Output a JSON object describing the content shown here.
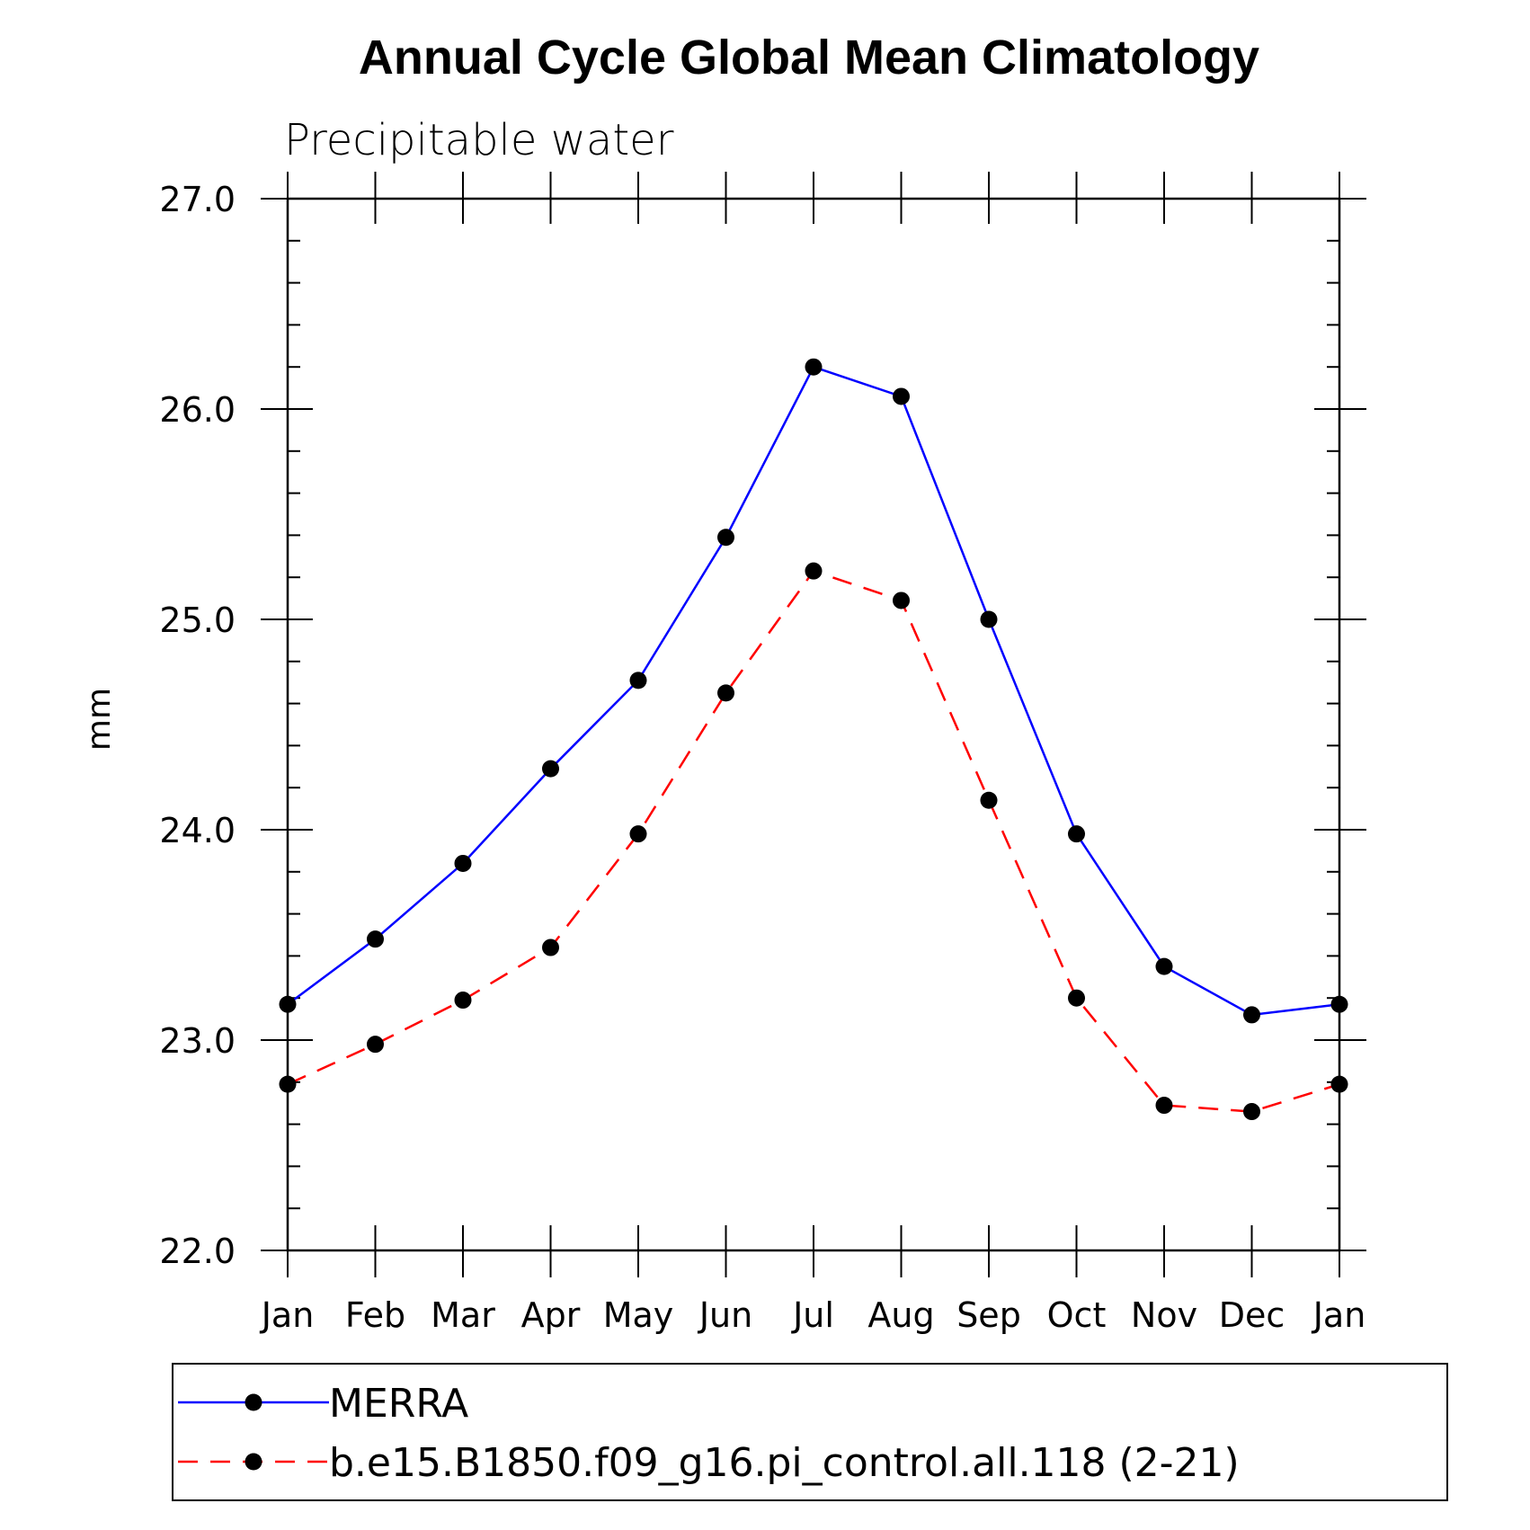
{
  "chart_data": {
    "type": "line",
    "title": "Annual Cycle Global Mean Climatology",
    "subtitle": "Precipitable water",
    "xlabel": "",
    "ylabel": "mm",
    "categories": [
      "Jan",
      "Feb",
      "Mar",
      "Apr",
      "May",
      "Jun",
      "Jul",
      "Aug",
      "Sep",
      "Oct",
      "Nov",
      "Dec",
      "Jan"
    ],
    "ylim": [
      22.0,
      27.0
    ],
    "yticks": [
      "22.0",
      "23.0",
      "24.0",
      "25.0",
      "26.0",
      "27.0"
    ],
    "grid": false,
    "legend_position": "bottom",
    "series": [
      {
        "name": "MERRA",
        "color": "#0000ff",
        "line_style": "solid",
        "marker": "filled-circle",
        "values": [
          23.17,
          23.48,
          23.84,
          24.29,
          24.71,
          25.39,
          26.2,
          26.06,
          25.0,
          23.98,
          23.35,
          23.12,
          23.17
        ]
      },
      {
        "name": "b.e15.B1850.f09_g16.pi_control.all.118 (2-21)",
        "color": "#ff0000",
        "line_style": "dashed",
        "marker": "filled-circle",
        "values": [
          22.79,
          22.98,
          23.19,
          23.44,
          23.98,
          24.65,
          25.23,
          25.09,
          24.14,
          23.2,
          22.69,
          22.66,
          22.79
        ]
      }
    ]
  }
}
